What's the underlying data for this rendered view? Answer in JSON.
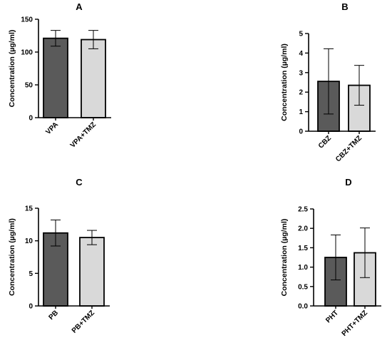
{
  "chart_data": [
    {
      "panel": "A",
      "type": "bar",
      "categories": [
        "VPA",
        "VPA+TMZ"
      ],
      "values": [
        121,
        119
      ],
      "errors": [
        12,
        14
      ],
      "ylabel": "Concentration (µg/ml)",
      "ylim": [
        0,
        150
      ],
      "yticks": [
        0,
        50,
        100,
        150
      ],
      "ytick_labels": [
        "0",
        "50",
        "100",
        "150"
      ],
      "colors": [
        "#5a5a5a",
        "#d9d9d9"
      ],
      "grid": false
    },
    {
      "panel": "B",
      "type": "bar",
      "categories": [
        "CBZ",
        "CBZ+TMZ"
      ],
      "values": [
        2.55,
        2.35
      ],
      "errors": [
        1.67,
        1.02
      ],
      "ylabel": "Concentration (µg/ml)",
      "ylim": [
        0,
        5
      ],
      "yticks": [
        0,
        1,
        2,
        3,
        4,
        5
      ],
      "ytick_labels": [
        "0",
        "1",
        "2",
        "3",
        "4",
        "5"
      ],
      "colors": [
        "#5a5a5a",
        "#d9d9d9"
      ],
      "grid": false
    },
    {
      "panel": "C",
      "type": "bar",
      "categories": [
        "PB",
        "PB+TMZ"
      ],
      "values": [
        11.2,
        10.5
      ],
      "errors": [
        2.0,
        1.1
      ],
      "ylabel": "Concentration (µg/ml)",
      "ylim": [
        0,
        15
      ],
      "yticks": [
        0,
        5,
        10,
        15
      ],
      "ytick_labels": [
        "0",
        "5",
        "10",
        "15"
      ],
      "colors": [
        "#5a5a5a",
        "#d9d9d9"
      ],
      "grid": false
    },
    {
      "panel": "D",
      "type": "bar",
      "categories": [
        "PHT",
        "PHT+TMZ"
      ],
      "values": [
        1.25,
        1.37
      ],
      "errors": [
        0.58,
        0.64
      ],
      "ylabel": "Concentration (µg/ml)",
      "ylim": [
        0,
        2.5
      ],
      "yticks": [
        0,
        0.5,
        1.0,
        1.5,
        2.0,
        2.5
      ],
      "ytick_labels": [
        "0.0",
        "0.5",
        "1.0",
        "1.5",
        "2.0",
        "2.5"
      ],
      "colors": [
        "#5a5a5a",
        "#d9d9d9"
      ],
      "grid": false
    }
  ]
}
